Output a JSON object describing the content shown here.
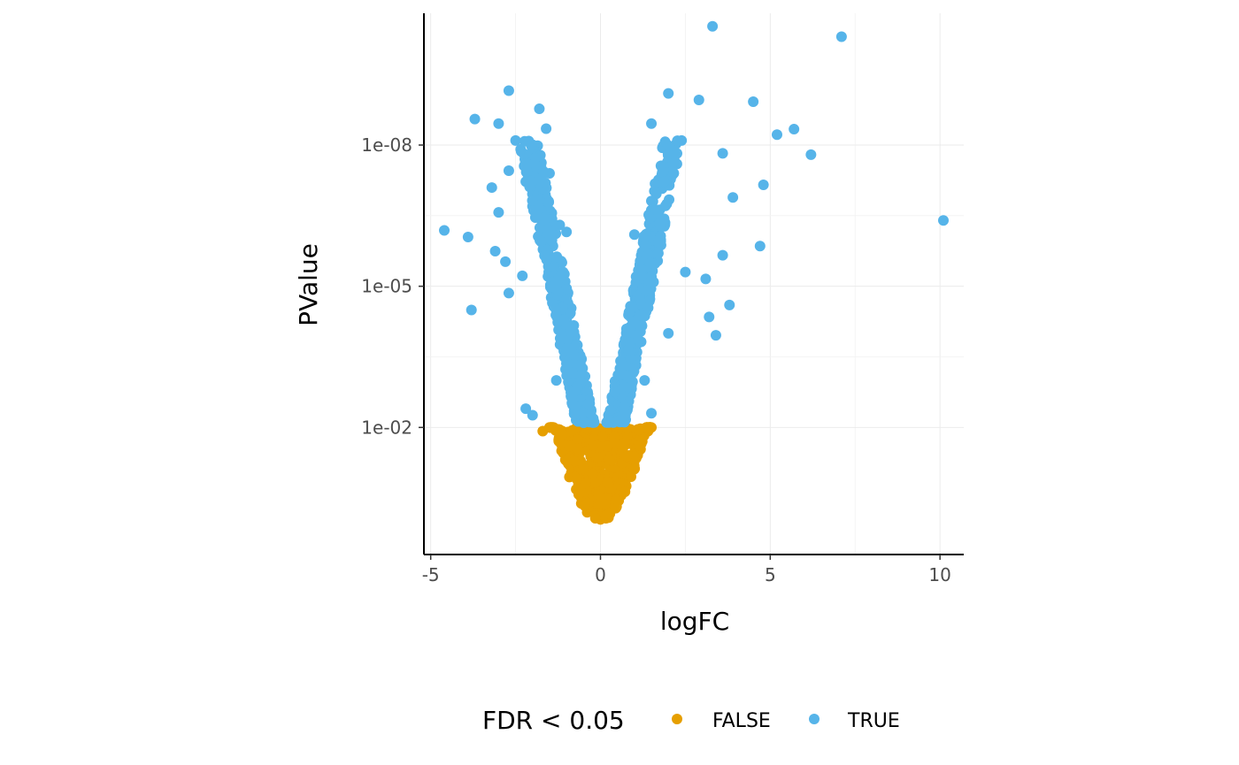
{
  "chart_data": {
    "type": "scatter",
    "title": "",
    "xlabel": "logFC",
    "ylabel": "PValue",
    "xlim": [
      -5.2,
      10.7
    ],
    "ylim_log10": [
      0.7,
      -10.8
    ],
    "y_scale": "log10-reversed",
    "x_ticks": [
      -5,
      0,
      5,
      10
    ],
    "x_tick_labels": [
      "-5",
      "0",
      "5",
      "10"
    ],
    "y_ticks": [
      1e-08,
      1e-05,
      0.01
    ],
    "y_tick_labels": [
      "1e-08",
      "1e-05",
      "1e-02"
    ],
    "grid": true,
    "legend": {
      "title": "FDR < 0.05",
      "position": "bottom",
      "entries": [
        {
          "label": "FALSE",
          "color": "#E69F00"
        },
        {
          "label": "TRUE",
          "color": "#56B4E9"
        }
      ]
    },
    "series": [
      {
        "name": "FALSE",
        "color": "#E69F00",
        "points": [
          [
            -1.7,
            0.012
          ],
          [
            -1.2,
            0.015
          ],
          [
            -1.0,
            0.025
          ],
          [
            -0.9,
            0.04
          ],
          [
            -0.8,
            0.06
          ],
          [
            -0.7,
            0.08
          ],
          [
            -0.6,
            0.1
          ],
          [
            -0.5,
            0.14
          ],
          [
            -0.4,
            0.2
          ],
          [
            -0.3,
            0.3
          ],
          [
            -0.2,
            0.45
          ],
          [
            -0.1,
            0.65
          ],
          [
            0.0,
            0.9
          ],
          [
            0.1,
            0.65
          ],
          [
            0.2,
            0.45
          ],
          [
            0.3,
            0.3
          ],
          [
            0.4,
            0.2
          ],
          [
            0.5,
            0.14
          ],
          [
            0.6,
            0.1
          ],
          [
            0.7,
            0.08
          ],
          [
            0.8,
            0.06
          ],
          [
            0.9,
            0.04
          ],
          [
            1.0,
            0.025
          ],
          [
            1.2,
            0.015
          ],
          [
            1.4,
            0.012
          ],
          [
            -0.5,
            0.03
          ],
          [
            0.5,
            0.03
          ],
          [
            -0.3,
            0.08
          ],
          [
            0.3,
            0.08
          ],
          [
            0.0,
            0.3
          ]
        ]
      },
      {
        "name": "TRUE",
        "color": "#56B4E9",
        "points": [
          [
            3.3,
            3e-11
          ],
          [
            7.1,
            5e-11
          ],
          [
            -2.7,
            7e-10
          ],
          [
            2.0,
            8e-10
          ],
          [
            2.9,
            1.1e-09
          ],
          [
            4.5,
            1.2e-09
          ],
          [
            -1.8,
            1.7e-09
          ],
          [
            -3.7,
            2.8e-09
          ],
          [
            -3.0,
            3.5e-09
          ],
          [
            1.5,
            3.5e-09
          ],
          [
            -1.6,
            4.5e-09
          ],
          [
            5.7,
            4.6e-09
          ],
          [
            5.2,
            6e-09
          ],
          [
            -2.5,
            8e-09
          ],
          [
            -2.0,
            1.2e-08
          ],
          [
            3.6,
            1.5e-08
          ],
          [
            6.2,
            1.6e-08
          ],
          [
            -2.7,
            3.5e-08
          ],
          [
            -1.5,
            4e-08
          ],
          [
            -2.2,
            6e-08
          ],
          [
            4.8,
            7e-08
          ],
          [
            -3.2,
            8e-08
          ],
          [
            -1.9,
            1.2e-07
          ],
          [
            3.9,
            1.3e-07
          ],
          [
            -3.0,
            2.7e-07
          ],
          [
            10.1,
            4e-07
          ],
          [
            -4.6,
            6.5e-07
          ],
          [
            -3.9,
            9e-07
          ],
          [
            -1.4,
            1.4e-06
          ],
          [
            -3.1,
            1.8e-06
          ],
          [
            4.7,
            1.4e-06
          ],
          [
            -2.8,
            3e-06
          ],
          [
            3.6,
            2.2e-06
          ],
          [
            1.0,
            8e-07
          ],
          [
            -1.0,
            7e-07
          ],
          [
            -2.3,
            6e-06
          ],
          [
            2.5,
            5e-06
          ],
          [
            3.1,
            7e-06
          ],
          [
            -2.7,
            1.4e-05
          ],
          [
            -3.8,
            3.2e-05
          ],
          [
            3.8,
            2.5e-05
          ],
          [
            3.2,
            4.5e-05
          ],
          [
            3.4,
            0.00011
          ],
          [
            2.0,
            0.0001
          ],
          [
            -0.8,
            0.0002
          ],
          [
            0.8,
            0.0002
          ],
          [
            -1.3,
            0.001
          ],
          [
            1.3,
            0.001
          ],
          [
            -2.2,
            0.004
          ],
          [
            -2.0,
            0.0055
          ],
          [
            1.5,
            0.005
          ],
          [
            -0.5,
            0.002
          ],
          [
            0.5,
            0.002
          ],
          [
            -0.3,
            0.005
          ],
          [
            0.3,
            0.005
          ],
          [
            -1.0,
            5e-05
          ],
          [
            1.0,
            5e-05
          ],
          [
            -1.1,
            5e-06
          ],
          [
            1.2,
            5e-06
          ],
          [
            -1.2,
            5e-07
          ]
        ]
      }
    ]
  }
}
